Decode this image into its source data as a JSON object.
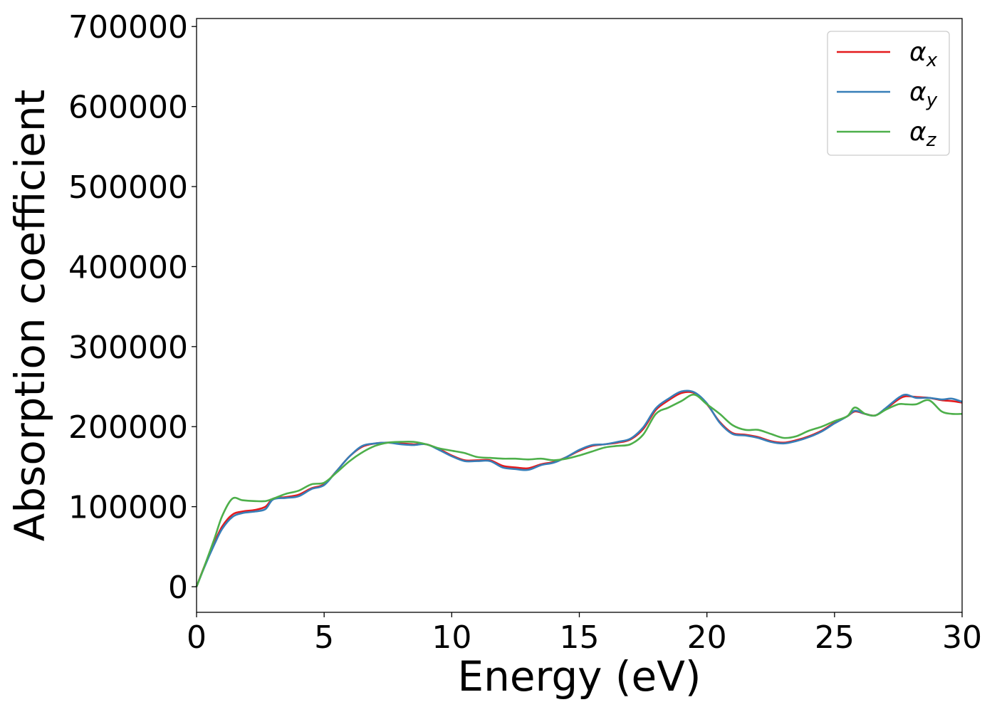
{
  "chart_data": {
    "type": "line",
    "title": "",
    "xlabel": "Energy (eV)",
    "ylabel": "Absorption coefficient",
    "xlim": [
      0,
      30
    ],
    "ylim": [
      -32000,
      710000
    ],
    "xticks": [
      0,
      5,
      10,
      15,
      20,
      25,
      30
    ],
    "yticks": [
      0,
      100000,
      200000,
      300000,
      400000,
      500000,
      600000,
      700000
    ],
    "xtick_labels": [
      "0",
      "5",
      "10",
      "15",
      "20",
      "25",
      "30"
    ],
    "ytick_labels": [
      "0",
      "100000",
      "200000",
      "300000",
      "400000",
      "500000",
      "600000",
      "700000"
    ],
    "grid": false,
    "legend_position": "top-right",
    "series": [
      {
        "name": "α_x",
        "symbol": "α",
        "sub": "x",
        "color": "#e41a1c",
        "x": [
          0,
          0.3,
          0.7,
          1.0,
          1.4,
          1.8,
          2.3,
          2.7,
          3.0,
          3.5,
          4.0,
          4.5,
          5.0,
          5.5,
          6.0,
          6.5,
          7.0,
          7.5,
          8.0,
          8.5,
          9.0,
          9.5,
          10.0,
          10.5,
          11.0,
          11.5,
          12.0,
          12.5,
          13.0,
          13.5,
          14.0,
          14.5,
          15.0,
          15.5,
          16.0,
          16.5,
          17.0,
          17.5,
          18.0,
          18.5,
          19.0,
          19.5,
          20.0,
          20.5,
          21.0,
          21.5,
          22.0,
          22.5,
          23.0,
          23.5,
          24.0,
          24.5,
          25.0,
          25.5,
          25.8,
          26.2,
          26.6,
          27.0,
          27.5,
          27.8,
          28.2,
          28.7,
          29.2,
          29.6,
          30.0
        ],
        "y": [
          0,
          25000,
          55000,
          75000,
          90000,
          94000,
          96000,
          100000,
          110000,
          112000,
          115000,
          123000,
          128000,
          145000,
          163000,
          175000,
          179000,
          180000,
          179000,
          178000,
          178000,
          172000,
          164000,
          158000,
          158000,
          158000,
          151000,
          149000,
          148000,
          153000,
          156000,
          162000,
          170000,
          176000,
          178000,
          180000,
          184000,
          197000,
          221000,
          233000,
          242000,
          242000,
          228000,
          206000,
          192000,
          190000,
          187000,
          182000,
          180000,
          183000,
          188000,
          195000,
          205000,
          213000,
          219000,
          216000,
          214000,
          222000,
          234000,
          238000,
          237000,
          236000,
          233000,
          232000,
          230000
        ]
      },
      {
        "name": "α_y",
        "symbol": "α",
        "sub": "y",
        "color": "#377eb8",
        "x": [
          0,
          0.3,
          0.7,
          1.0,
          1.4,
          1.8,
          2.3,
          2.7,
          3.0,
          3.5,
          4.0,
          4.5,
          5.0,
          5.5,
          6.0,
          6.5,
          7.0,
          7.5,
          8.0,
          8.5,
          9.0,
          9.5,
          10.0,
          10.5,
          11.0,
          11.5,
          12.0,
          12.5,
          13.0,
          13.5,
          14.0,
          14.5,
          15.0,
          15.5,
          16.0,
          16.5,
          17.0,
          17.5,
          18.0,
          18.5,
          19.0,
          19.5,
          20.0,
          20.5,
          21.0,
          21.5,
          22.0,
          22.5,
          23.0,
          23.5,
          24.0,
          24.5,
          25.0,
          25.5,
          25.8,
          26.2,
          26.6,
          27.0,
          27.5,
          27.8,
          28.2,
          28.7,
          29.2,
          29.6,
          30.0
        ],
        "y": [
          0,
          24000,
          53000,
          72000,
          87000,
          92000,
          94000,
          97000,
          109000,
          111000,
          113000,
          122000,
          127000,
          145000,
          163000,
          176000,
          179000,
          180000,
          178000,
          177000,
          178000,
          171000,
          163000,
          157000,
          157000,
          157000,
          149000,
          147000,
          146000,
          152000,
          155000,
          162000,
          171000,
          177000,
          178000,
          181000,
          185000,
          199000,
          223000,
          235000,
          244000,
          243000,
          229000,
          205000,
          191000,
          189000,
          186000,
          181000,
          179000,
          182000,
          187000,
          194000,
          204000,
          213000,
          220000,
          216000,
          214000,
          223000,
          236000,
          240000,
          236000,
          236000,
          234000,
          235000,
          231000
        ]
      },
      {
        "name": "α_z",
        "symbol": "α",
        "sub": "z",
        "color": "#4daf4a",
        "x": [
          0,
          0.3,
          0.7,
          1.0,
          1.4,
          1.8,
          2.3,
          2.7,
          3.0,
          3.5,
          4.0,
          4.5,
          5.0,
          5.5,
          6.0,
          6.5,
          7.0,
          7.5,
          8.0,
          8.5,
          9.0,
          9.5,
          10.0,
          10.5,
          11.0,
          11.5,
          12.0,
          12.5,
          13.0,
          13.5,
          14.0,
          14.5,
          15.0,
          15.5,
          16.0,
          16.5,
          17.0,
          17.5,
          18.0,
          18.5,
          19.0,
          19.5,
          20.0,
          20.5,
          21.0,
          21.5,
          22.0,
          22.5,
          23.0,
          23.5,
          24.0,
          24.5,
          25.0,
          25.5,
          25.8,
          26.2,
          26.6,
          27.0,
          27.5,
          27.8,
          28.2,
          28.7,
          29.2,
          29.6,
          30.0
        ],
        "y": [
          0,
          25000,
          60000,
          88000,
          110000,
          108000,
          107000,
          107000,
          110000,
          116000,
          120000,
          128000,
          130000,
          143000,
          157000,
          168000,
          176000,
          180000,
          181000,
          181000,
          178000,
          173000,
          170000,
          167000,
          162000,
          161000,
          160000,
          160000,
          159000,
          160000,
          158000,
          160000,
          164000,
          169000,
          174000,
          176000,
          178000,
          190000,
          216000,
          224000,
          232000,
          240000,
          228000,
          216000,
          202000,
          196000,
          196000,
          191000,
          186000,
          188000,
          195000,
          200000,
          207000,
          213000,
          224000,
          216000,
          214000,
          221000,
          228000,
          228000,
          228000,
          233000,
          219000,
          216000,
          216000
        ]
      }
    ]
  }
}
